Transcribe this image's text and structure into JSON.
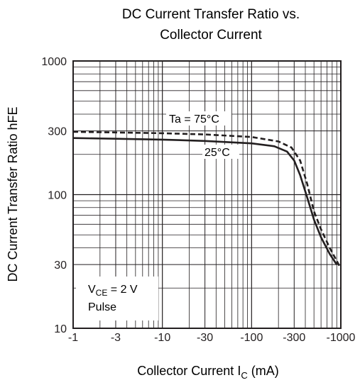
{
  "chart_data": {
    "type": "line",
    "title": [
      "DC Current Transfer Ratio vs.",
      "Collector Current"
    ],
    "xlabel": {
      "main": "Collector Current   I",
      "sub": "C",
      "unit": "  (mA)"
    },
    "ylabel": "DC Current Transfer Ratio   hFE",
    "x_scale": "log",
    "y_scale": "log",
    "xlim": [
      1,
      1000
    ],
    "ylim": [
      10,
      1000
    ],
    "x_ticks": [
      1,
      3,
      10,
      30,
      100,
      300,
      1000
    ],
    "x_tick_labels": [
      "-1",
      "-3",
      "-10",
      "-30",
      "-100",
      "-300",
      "-1000"
    ],
    "y_ticks": [
      10,
      30,
      100,
      300,
      1000
    ],
    "y_tick_labels": [
      "10",
      "30",
      "100",
      "300",
      "1000"
    ],
    "grid": true,
    "series": [
      {
        "name": "Ta = 75°C",
        "style": "dashed",
        "x": [
          1,
          3,
          10,
          30,
          100,
          200,
          280,
          350,
          420,
          500,
          600,
          750,
          1000
        ],
        "y": [
          295,
          292,
          288,
          282,
          270,
          250,
          225,
          180,
          120,
          75,
          55,
          40,
          28
        ]
      },
      {
        "name": "25°C",
        "style": "solid",
        "x": [
          1,
          3,
          10,
          30,
          100,
          180,
          250,
          300,
          350,
          420,
          500,
          600,
          750,
          900
        ],
        "y": [
          265,
          262,
          258,
          252,
          242,
          230,
          210,
          180,
          140,
          95,
          65,
          48,
          36,
          30
        ]
      }
    ],
    "annotations": {
      "line1_prefix": "V",
      "line1_sub": "CE",
      "line1_suffix": " = 2 V",
      "line2": "Pulse"
    },
    "colors": {
      "line": "#231f20",
      "grid": "#231f20"
    }
  }
}
